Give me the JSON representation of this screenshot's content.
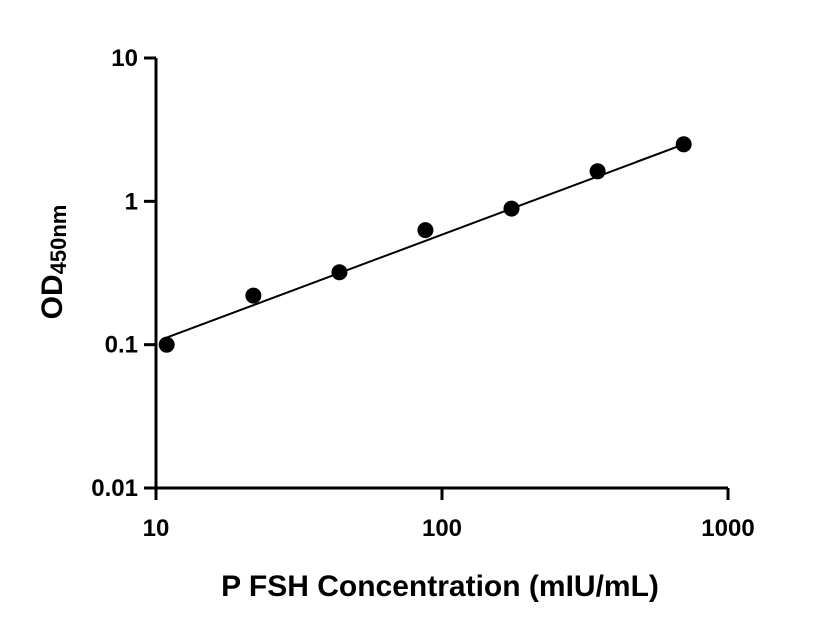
{
  "chart_data": {
    "type": "scatter",
    "xlabel": "P FSH Concentration (mIU/mL)",
    "ylabel": {
      "main": "OD",
      "subscript": "450nm"
    },
    "xscale": "log",
    "yscale": "log",
    "xlim": [
      10,
      1000
    ],
    "ylim": [
      0.01,
      10
    ],
    "x_ticks": [
      "10",
      "100",
      "1000"
    ],
    "y_ticks": [
      "0.01",
      "0.1",
      "1",
      "10"
    ],
    "grid": false,
    "legend": "none",
    "series": [
      {
        "x": [
          10.9,
          21.9,
          43.8,
          87.5,
          175,
          350,
          700
        ],
        "y": [
          0.1,
          0.22,
          0.32,
          0.63,
          0.89,
          1.62,
          2.5
        ]
      }
    ],
    "fit_line": {
      "x": [
        10.9,
        700
      ],
      "y": [
        0.112,
        2.5
      ]
    }
  }
}
